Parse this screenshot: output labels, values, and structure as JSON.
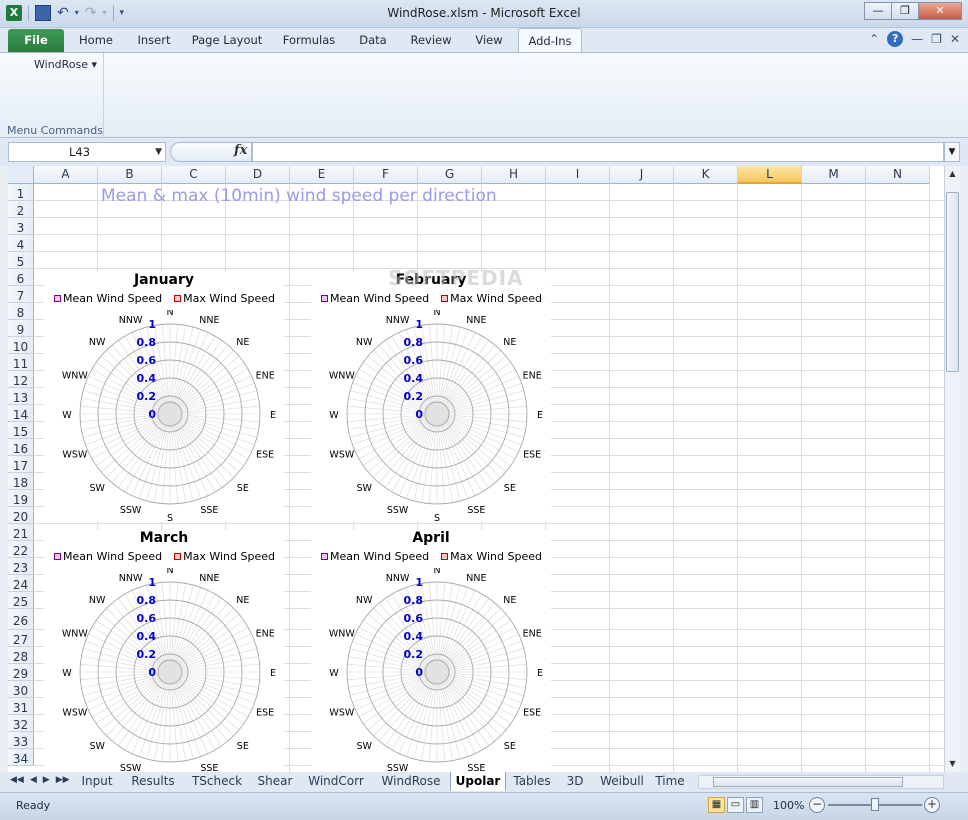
{
  "window": {
    "title": "WindRose.xlsm  -  Microsoft Excel",
    "excel_logo": "X",
    "minimize": "—",
    "restore": "❐",
    "close": "✕"
  },
  "ribbon": {
    "tabs": [
      {
        "label": "File"
      },
      {
        "label": "Home"
      },
      {
        "label": "Insert"
      },
      {
        "label": "Page Layout"
      },
      {
        "label": "Formulas"
      },
      {
        "label": "Data"
      },
      {
        "label": "Review"
      },
      {
        "label": "View"
      },
      {
        "label": "Add-Ins"
      }
    ],
    "windrose_button": "WindRose ▾",
    "group_label": "Menu Commands",
    "help": "?"
  },
  "formula_bar": {
    "name_box": "L43",
    "fx": "fx",
    "formula": ""
  },
  "grid": {
    "columns": [
      "A",
      "B",
      "C",
      "D",
      "E",
      "F",
      "G",
      "H",
      "I",
      "J",
      "K",
      "L",
      "M",
      "N"
    ],
    "selected_column": "L",
    "rows": [
      "1",
      "2",
      "3",
      "4",
      "5",
      "6",
      "7",
      "8",
      "9",
      "10",
      "11",
      "12",
      "13",
      "14",
      "15",
      "16",
      "17",
      "18",
      "19",
      "20",
      "21",
      "22",
      "23",
      "24",
      "25",
      "26",
      "27",
      "28",
      "29",
      "30",
      "31",
      "32",
      "33",
      "34"
    ],
    "sheet_title": "Mean & max (10min) wind speed per direction"
  },
  "charts": {
    "directions": [
      "N",
      "NNE",
      "NE",
      "ENE",
      "E",
      "ESE",
      "SE",
      "SSE",
      "S",
      "SSW",
      "SW",
      "WSW",
      "W",
      "WNW",
      "NW",
      "NNW"
    ],
    "ticks": [
      "0",
      "0.2",
      "0.4",
      "0.6",
      "0.8",
      "1"
    ],
    "legend": {
      "mean": "Mean Wind Speed",
      "max": "Max Wind Speed"
    },
    "colors": {
      "mean": "#800080",
      "max": "#c00000",
      "tick": "#0000cc"
    },
    "items": [
      {
        "title": "January"
      },
      {
        "title": "February"
      },
      {
        "title": "March"
      },
      {
        "title": "April"
      }
    ]
  },
  "watermark": "SOFTPEDIA",
  "sheet_tabs": {
    "nav": [
      "◀◀",
      "◀",
      "▶",
      "▶▶"
    ],
    "tabs": [
      {
        "label": "Input"
      },
      {
        "label": "Results"
      },
      {
        "label": "TScheck"
      },
      {
        "label": "Shear"
      },
      {
        "label": "WindCorr"
      },
      {
        "label": "WindRose"
      },
      {
        "label": "Upolar"
      },
      {
        "label": "Tables"
      },
      {
        "label": "3D"
      },
      {
        "label": "Weibull"
      },
      {
        "label": "Time"
      }
    ],
    "active": "Upolar"
  },
  "status_bar": {
    "ready": "Ready",
    "zoom": "100%"
  }
}
